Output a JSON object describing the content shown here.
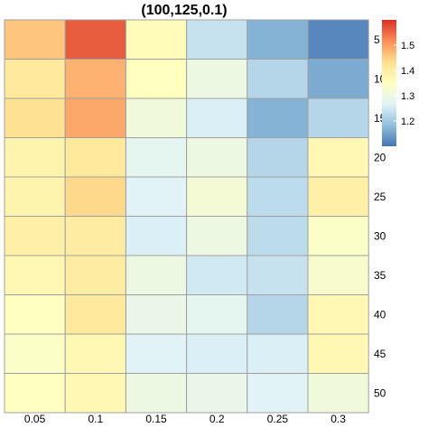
{
  "chart_data": {
    "type": "heatmap",
    "title": "(100,125,0.1)",
    "x_categories": [
      "0.05",
      "0.1",
      "0.15",
      "0.2",
      "0.25",
      "0.3"
    ],
    "y_categories": [
      "5",
      "10",
      "15",
      "20",
      "25",
      "30",
      "35",
      "40",
      "45",
      "50"
    ],
    "values": [
      [
        1.46,
        1.56,
        1.36,
        1.24,
        1.17,
        1.12
      ],
      [
        1.41,
        1.48,
        1.35,
        1.3,
        1.22,
        1.16
      ],
      [
        1.43,
        1.49,
        1.31,
        1.26,
        1.17,
        1.22
      ],
      [
        1.38,
        1.41,
        1.28,
        1.3,
        1.22,
        1.37
      ],
      [
        1.38,
        1.44,
        1.27,
        1.32,
        1.23,
        1.39
      ],
      [
        1.39,
        1.4,
        1.26,
        1.3,
        1.23,
        1.34
      ],
      [
        1.37,
        1.4,
        1.3,
        1.25,
        1.24,
        1.33
      ],
      [
        1.35,
        1.41,
        1.29,
        1.28,
        1.22,
        1.37
      ],
      [
        1.34,
        1.37,
        1.27,
        1.26,
        1.26,
        1.37
      ],
      [
        1.35,
        1.37,
        1.3,
        1.29,
        1.27,
        1.31
      ]
    ],
    "color_scale": {
      "min": 1.1,
      "max": 1.6,
      "palette": "RdYlBu reversed",
      "stops": [
        "#4575b4",
        "#91bfdb",
        "#e0f3f8",
        "#ffffbf",
        "#fee090",
        "#fc8d59",
        "#d73027"
      ],
      "ticks": [
        "1.2",
        "1.3",
        "1.4",
        "1.5"
      ],
      "legend_position": "top-right"
    },
    "grid_color": "#a0a0a0"
  }
}
